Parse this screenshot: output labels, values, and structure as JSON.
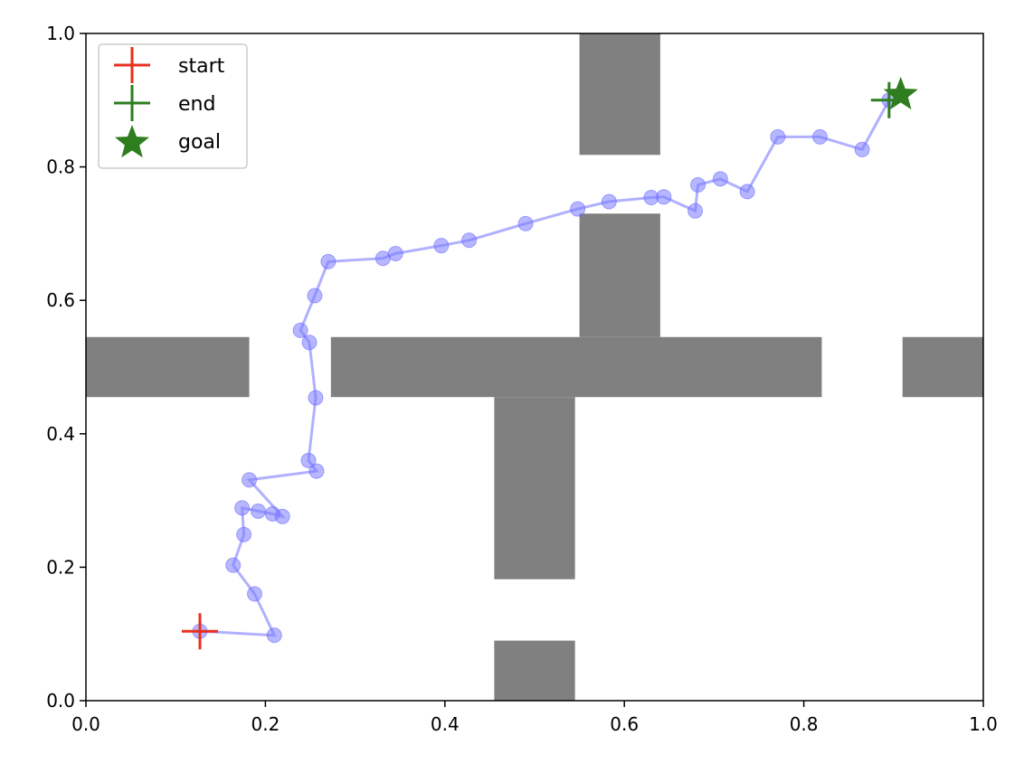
{
  "chart_data": {
    "type": "scatter",
    "title": "",
    "xlabel": "",
    "ylabel": "",
    "xlim": [
      0.0,
      1.0
    ],
    "ylim": [
      0.0,
      1.0
    ],
    "grid": false,
    "legend_position": "top-left",
    "x_ticks": [
      "0.0",
      "0.2",
      "0.4",
      "0.6",
      "0.8",
      "1.0"
    ],
    "y_ticks": [
      "0.0",
      "0.2",
      "0.4",
      "0.6",
      "0.8",
      "1.0"
    ],
    "obstacles": [
      {
        "x0": 0.55,
        "x1": 0.64,
        "y0": 0.818,
        "y1": 1.0
      },
      {
        "x0": 0.55,
        "x1": 0.64,
        "y0": 0.545,
        "y1": 0.73
      },
      {
        "x0": 0.0,
        "x1": 0.182,
        "y0": 0.455,
        "y1": 0.545
      },
      {
        "x0": 0.273,
        "x1": 0.82,
        "y0": 0.455,
        "y1": 0.545
      },
      {
        "x0": 0.91,
        "x1": 1.0,
        "y0": 0.455,
        "y1": 0.545
      },
      {
        "x0": 0.455,
        "x1": 0.545,
        "y0": 0.182,
        "y1": 0.455
      },
      {
        "x0": 0.455,
        "x1": 0.545,
        "y0": 0.0,
        "y1": 0.09
      }
    ],
    "obstacle_color": "#808080",
    "path": {
      "color": "#7b7bff",
      "x": [
        0.127,
        0.21,
        0.188,
        0.164,
        0.176,
        0.174,
        0.192,
        0.208,
        0.219,
        0.182,
        0.257,
        0.248,
        0.256,
        0.249,
        0.239,
        0.255,
        0.27,
        0.331,
        0.345,
        0.396,
        0.427,
        0.49,
        0.548,
        0.583,
        0.63,
        0.644,
        0.679,
        0.682,
        0.707,
        0.737,
        0.771,
        0.818,
        0.865,
        0.895
      ],
      "y": [
        0.104,
        0.098,
        0.16,
        0.203,
        0.249,
        0.289,
        0.284,
        0.28,
        0.276,
        0.331,
        0.344,
        0.36,
        0.454,
        0.537,
        0.555,
        0.607,
        0.658,
        0.663,
        0.67,
        0.682,
        0.69,
        0.715,
        0.737,
        0.748,
        0.754,
        0.755,
        0.734,
        0.773,
        0.782,
        0.763,
        0.845,
        0.845,
        0.826,
        0.9
      ]
    },
    "series": [
      {
        "name": "start",
        "marker": "plus",
        "color": "#e8301e",
        "x": [
          0.127
        ],
        "y": [
          0.104
        ]
      },
      {
        "name": "end",
        "marker": "plus",
        "color": "#2e7d1f",
        "x": [
          0.895
        ],
        "y": [
          0.9
        ]
      },
      {
        "name": "goal",
        "marker": "star",
        "color": "#2e7d1f",
        "x": [
          0.908
        ],
        "y": [
          0.908
        ]
      }
    ]
  }
}
